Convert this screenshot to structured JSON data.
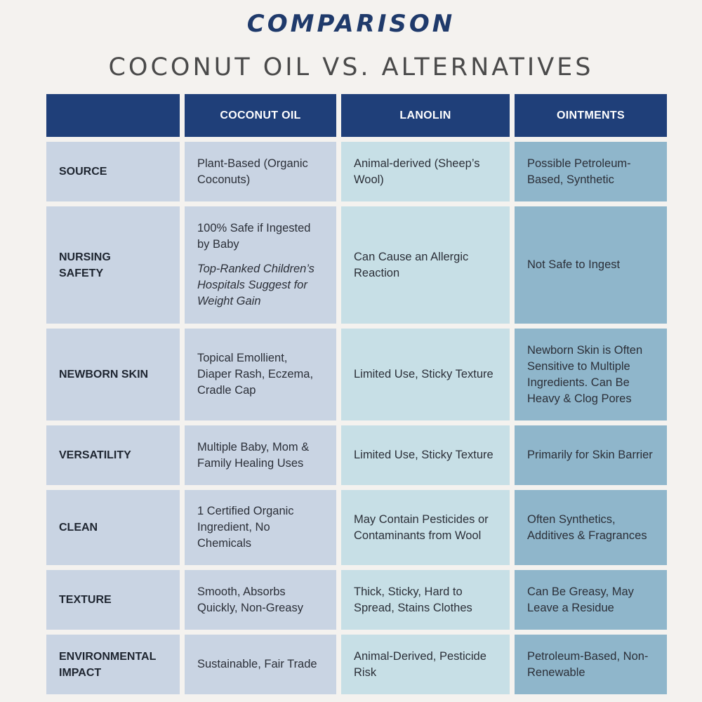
{
  "header": {
    "kicker": "COMPARISON",
    "title": "COCONUT OIL VS. ALTERNATIVES"
  },
  "table": {
    "columns": [
      "",
      "COCONUT OIL",
      "LANOLIN",
      "OINTMENTS"
    ],
    "rows": [
      {
        "label": "SOURCE",
        "coconut": "Plant-Based (Organic Coconuts)",
        "lanolin": "Animal-derived (Sheep’s Wool)",
        "ointments": "Possible Petroleum-Based, Synthetic"
      },
      {
        "label": "NURSING SAFETY",
        "coconut": "100% Safe if Ingested by Baby",
        "coconut_note": "Top-Ranked Children’s Hospitals Suggest for Weight Gain",
        "lanolin": "Can Cause an Allergic Reaction",
        "ointments": "Not Safe to Ingest"
      },
      {
        "label": "NEWBORN SKIN",
        "coconut": "Topical Emollient, Diaper Rash, Eczema, Cradle Cap",
        "lanolin": "Limited Use, Sticky Texture",
        "ointments": "Newborn Skin is Often Sensitive to Multiple Ingredients. Can Be Heavy & Clog Pores"
      },
      {
        "label": "VERSATILITY",
        "coconut": "Multiple Baby, Mom & Family Healing Uses",
        "lanolin": "Limited Use, Sticky Texture",
        "ointments": "Primarily for Skin Barrier"
      },
      {
        "label": "CLEAN",
        "coconut": "1 Certified Organic Ingredient, No Chemicals",
        "lanolin": "May Contain Pesticides or Contaminants from Wool",
        "ointments": "Often Synthetics, Additives & Fragrances"
      },
      {
        "label": "TEXTURE",
        "coconut": "Smooth, Absorbs Quickly, Non-Greasy",
        "lanolin": "Thick, Sticky, Hard to Spread, Stains Clothes",
        "ointments": "Can Be Greasy, May Leave a Residue"
      },
      {
        "label": "ENVIRONMENTAL IMPACT",
        "coconut": "Sustainable, Fair Trade",
        "lanolin": "Animal-Derived, Pesticide Risk",
        "ointments": "Petroleum-Based, Non-Renewable"
      }
    ]
  },
  "colors": {
    "header_bg": "#1f3f79",
    "kicker": "#1f3a6b",
    "title": "#4a4a4a",
    "coconut_col": "#c9d4e3",
    "lanolin_col": "#c7dfe6",
    "ointments_col": "#8fb6cb",
    "page_bg": "#f4f2ef"
  }
}
